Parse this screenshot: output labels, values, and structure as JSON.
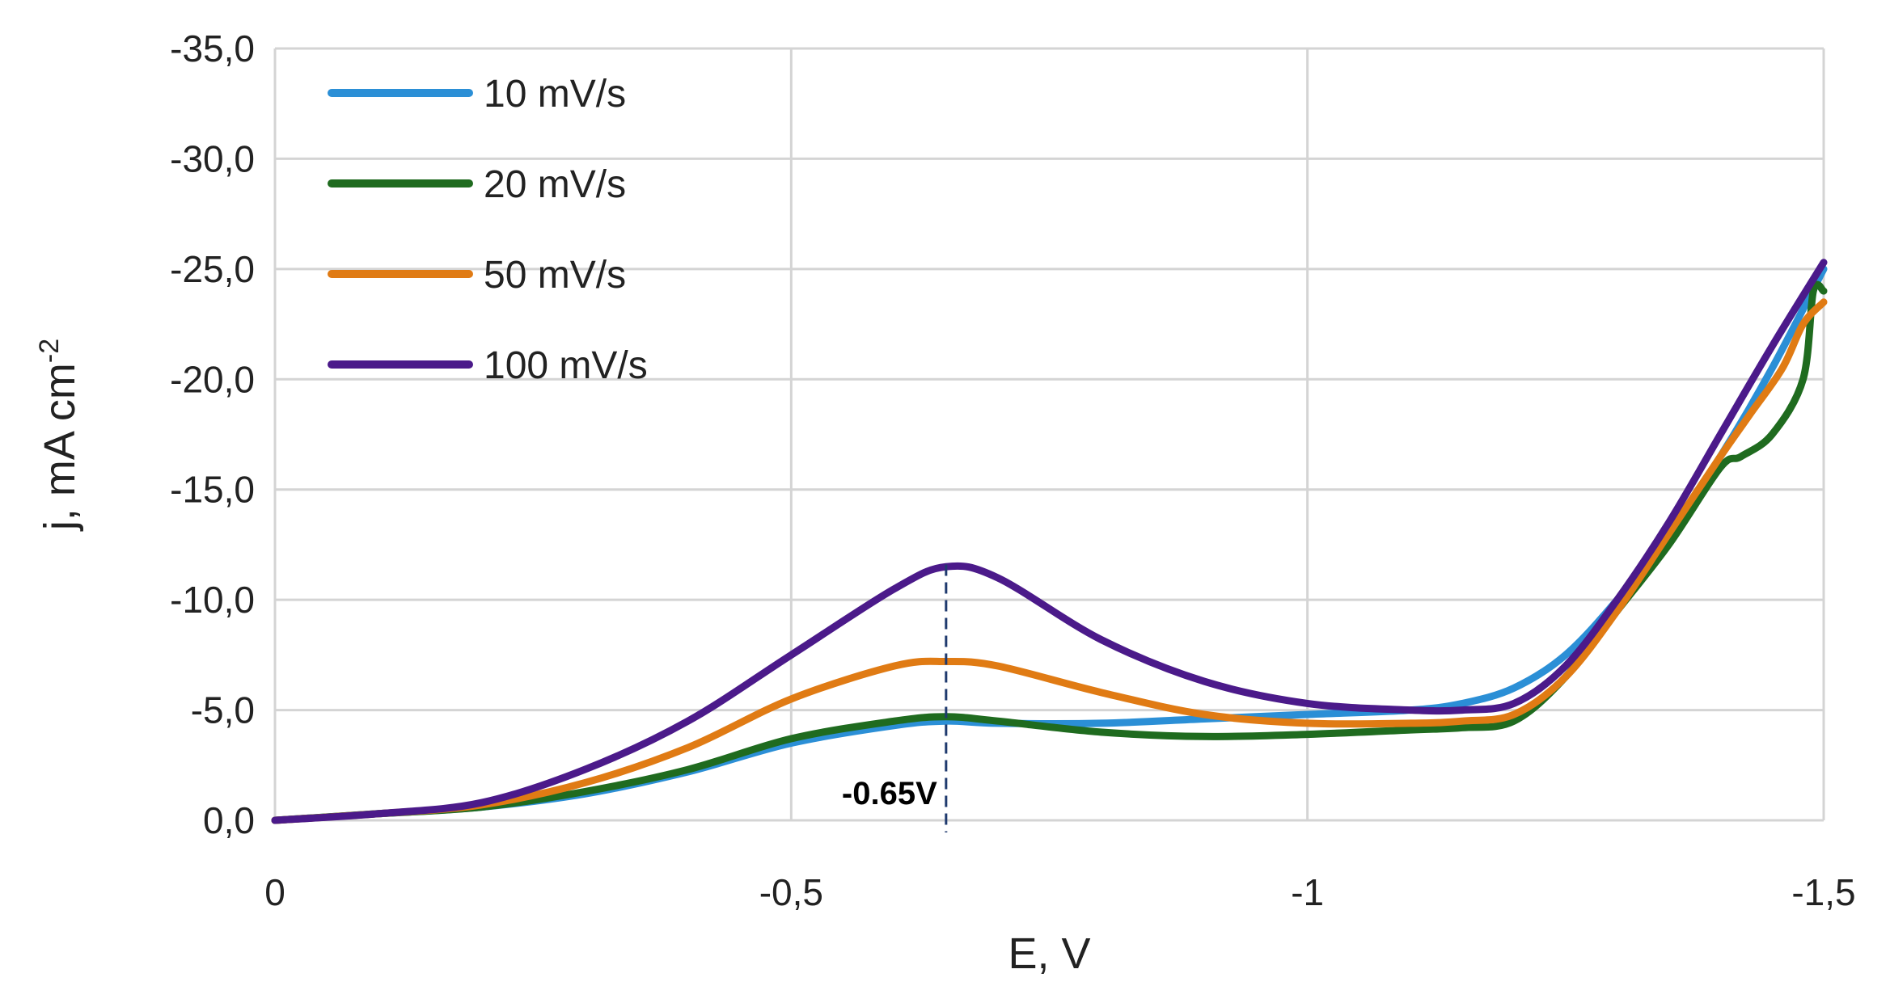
{
  "chart_data": {
    "type": "line",
    "title": "",
    "xlabel": "E, V",
    "ylabel": "j, mA cm",
    "ylabel_superscript": "-2",
    "xlim": [
      0,
      -1.5
    ],
    "ylim": [
      0,
      -35
    ],
    "grid": true,
    "legend_position": "top-left",
    "x_ticks": [
      {
        "value": 0,
        "label": "0"
      },
      {
        "value": -0.5,
        "label": "-0,5"
      },
      {
        "value": -1,
        "label": "-1"
      },
      {
        "value": -1.5,
        "label": "-1,5"
      }
    ],
    "y_ticks": [
      {
        "value": 0,
        "label": "0,0"
      },
      {
        "value": -5,
        "label": "-5,0"
      },
      {
        "value": -10,
        "label": "-10,0"
      },
      {
        "value": -15,
        "label": "-15,0"
      },
      {
        "value": -20,
        "label": "-20,0"
      },
      {
        "value": -25,
        "label": "-25,0"
      },
      {
        "value": -30,
        "label": "-30,0"
      },
      {
        "value": -35,
        "label": "-35,0"
      }
    ],
    "annotations": [
      {
        "text": "-0.65V",
        "x": -0.65,
        "style": "dashed vertical line"
      }
    ],
    "series": [
      {
        "name": "10 mV/s",
        "color": "#2b8fd6",
        "x": [
          0,
          -0.1,
          -0.2,
          -0.3,
          -0.4,
          -0.5,
          -0.6,
          -0.65,
          -0.7,
          -0.8,
          -0.9,
          -1.0,
          -1.1,
          -1.15,
          -1.2,
          -1.25,
          -1.3,
          -1.35,
          -1.4,
          -1.45,
          -1.5
        ],
        "y": [
          0,
          -0.3,
          -0.6,
          -1.2,
          -2.2,
          -3.5,
          -4.3,
          -4.5,
          -4.4,
          -4.4,
          -4.6,
          -4.8,
          -5.0,
          -5.3,
          -6.0,
          -7.5,
          -10.0,
          -13.0,
          -16.5,
          -20.5,
          -25.0
        ]
      },
      {
        "name": "20 mV/s",
        "color": "#1f6b1f",
        "x": [
          0,
          -0.1,
          -0.2,
          -0.3,
          -0.4,
          -0.5,
          -0.6,
          -0.65,
          -0.7,
          -0.8,
          -0.9,
          -1.0,
          -1.1,
          -1.15,
          -1.2,
          -1.25,
          -1.3,
          -1.35,
          -1.4,
          -1.42,
          -1.45,
          -1.48,
          -1.49,
          -1.5
        ],
        "y": [
          0,
          -0.3,
          -0.6,
          -1.3,
          -2.3,
          -3.7,
          -4.5,
          -4.7,
          -4.5,
          -4.0,
          -3.8,
          -3.9,
          -4.1,
          -4.2,
          -4.5,
          -6.5,
          -9.5,
          -12.5,
          -16.0,
          -16.5,
          -17.5,
          -20.0,
          -24.0,
          -24.0
        ]
      },
      {
        "name": "50 mV/s",
        "color": "#e07b14",
        "x": [
          0,
          -0.1,
          -0.2,
          -0.3,
          -0.4,
          -0.5,
          -0.6,
          -0.65,
          -0.7,
          -0.8,
          -0.9,
          -1.0,
          -1.1,
          -1.15,
          -1.2,
          -1.25,
          -1.3,
          -1.35,
          -1.4,
          -1.43,
          -1.46,
          -1.48,
          -1.5
        ],
        "y": [
          0,
          -0.3,
          -0.7,
          -1.7,
          -3.3,
          -5.5,
          -7.0,
          -7.2,
          -7.0,
          -5.8,
          -4.8,
          -4.4,
          -4.4,
          -4.5,
          -4.8,
          -6.5,
          -9.5,
          -13.0,
          -16.5,
          -18.5,
          -20.5,
          -22.5,
          -23.5
        ]
      },
      {
        "name": "100 mV/s",
        "color": "#4b1a8a",
        "x": [
          0,
          -0.1,
          -0.2,
          -0.3,
          -0.4,
          -0.5,
          -0.6,
          -0.65,
          -0.7,
          -0.8,
          -0.9,
          -1.0,
          -1.1,
          -1.15,
          -1.2,
          -1.25,
          -1.3,
          -1.35,
          -1.4,
          -1.45,
          -1.5
        ],
        "y": [
          0,
          -0.3,
          -0.8,
          -2.3,
          -4.5,
          -7.5,
          -10.5,
          -11.5,
          -11.0,
          -8.2,
          -6.3,
          -5.3,
          -5.0,
          -5.0,
          -5.3,
          -7.0,
          -10.0,
          -13.5,
          -17.5,
          -21.5,
          -25.3
        ]
      }
    ]
  }
}
